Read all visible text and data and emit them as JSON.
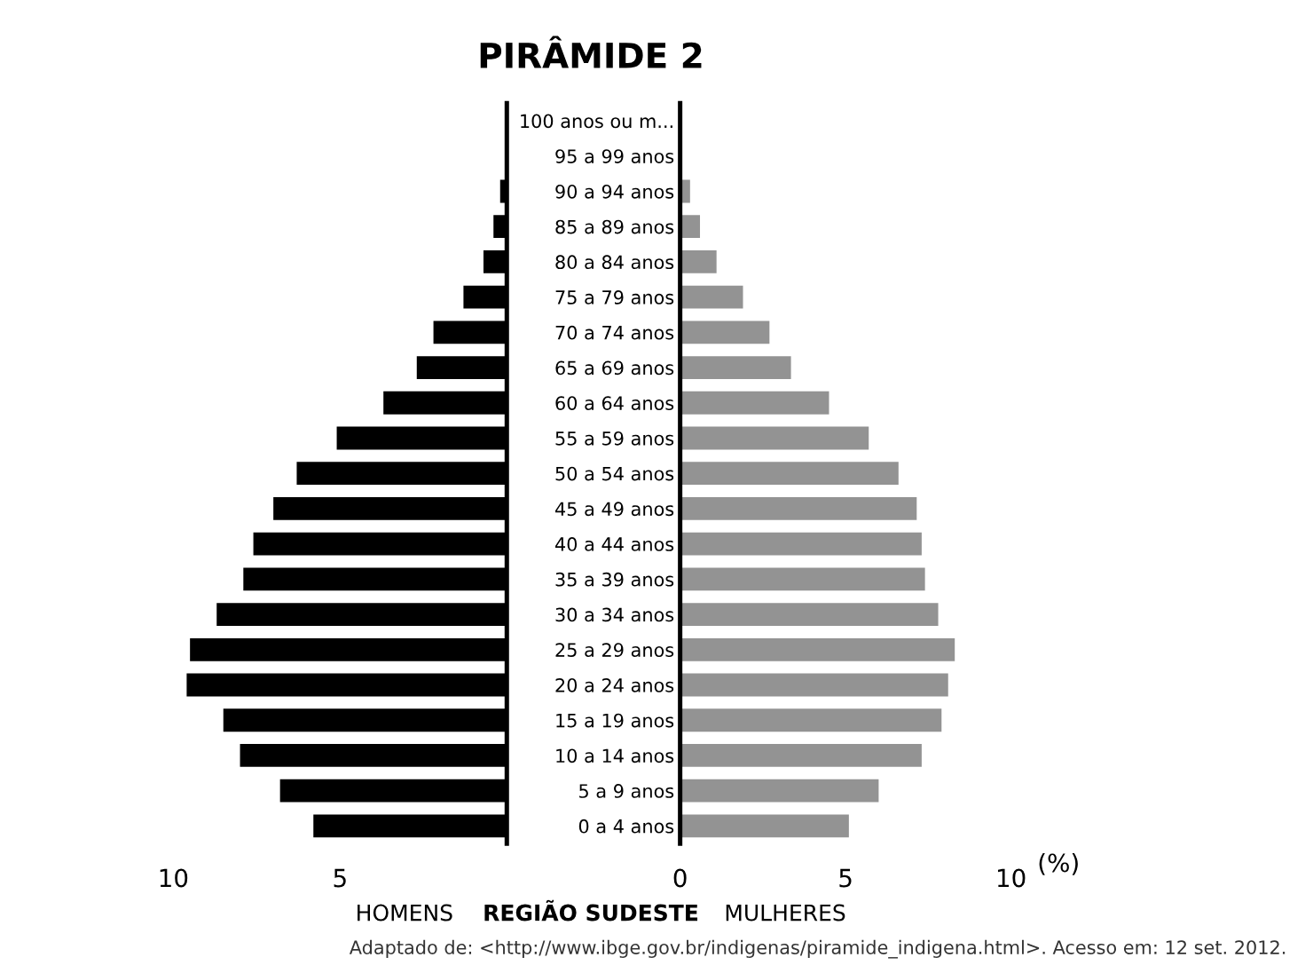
{
  "chart_data": [
    {
      "type": "bar",
      "orientation": "horizontal",
      "title": "PIRÂMIDE 2",
      "subtitle": "REGIÃO SUDESTE",
      "xlabel": "HOMENS",
      "categories": [
        "100 anos ou m...",
        "95 a 99 anos",
        "90 a 94 anos",
        "85 a 89 anos",
        "80 a 84 anos",
        "75 a 79 anos",
        "70 a 74 anos",
        "65 a 69 anos",
        "60 a 64 anos",
        "55 a 59 anos",
        "50 a 54 anos",
        "45 a 49 anos",
        "40 a 44 anos",
        "35 a 39 anos",
        "30 a 34 anos",
        "25 a 29 anos",
        "20 a 24 anos",
        "15 a 19 anos",
        "10 a 14 anos",
        "5 a 9 anos",
        "0 a 4 anos"
      ],
      "series": [
        {
          "color": "#000000",
          "values": [
            0,
            0,
            0.2,
            0.4,
            0.7,
            1.3,
            2.2,
            2.7,
            3.7,
            5.1,
            6.3,
            7.0,
            7.6,
            7.9,
            8.7,
            9.5,
            9.6,
            8.5,
            8.0,
            6.8,
            5.8
          ]
        }
      ],
      "xlim": [
        10,
        0
      ],
      "xticks": [
        10,
        5
      ],
      "grid": false,
      "legend": false
    },
    {
      "type": "bar",
      "orientation": "horizontal",
      "xlabel": "MULHERES",
      "categories": [
        null,
        null,
        null,
        null,
        null,
        null,
        null,
        null,
        null,
        null,
        null,
        null,
        null,
        null,
        null,
        null,
        null,
        null,
        null,
        null,
        null
      ],
      "series": [
        {
          "color": "#939393",
          "values": [
            0,
            0,
            0.3,
            0.6,
            1.1,
            1.9,
            2.7,
            3.35,
            4.5,
            5.7,
            6.6,
            7.15,
            7.3,
            7.4,
            7.8,
            8.3,
            8.1,
            7.9,
            7.3,
            6.0,
            5.1
          ]
        }
      ],
      "xlim": [
        0,
        10
      ],
      "xticks": [
        0,
        5,
        10
      ],
      "grid": false,
      "legend": false,
      "annotations": [
        "(%)",
        "Adaptado de: <http://www.ibge.gov.br/indigenas/piramide_indigena.html>. Acesso em: 12 set. 2012."
      ]
    }
  ]
}
